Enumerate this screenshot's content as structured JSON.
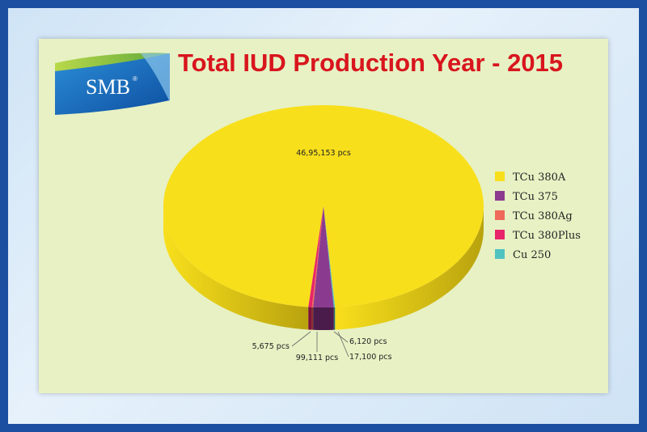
{
  "logo": {
    "text": "SMB",
    "mark": "®"
  },
  "title": "Total IUD Production Year - 2015",
  "colors": {
    "frame": "#1c4fa0",
    "panel": "#e7f1c4",
    "title": "#d8151d"
  },
  "chart_data": {
    "type": "pie",
    "style": "3d",
    "legend_position": "right",
    "series": [
      {
        "name": "TCu 380A",
        "value": 4695153,
        "label": "46,95,153 pcs",
        "color": "#f8df1c",
        "side": "#b9a30e"
      },
      {
        "name": "TCu 375",
        "value": 99111,
        "label": "99,111 pcs",
        "color": "#8b3b8f",
        "side": "#4a1c4c"
      },
      {
        "name": "TCu 380Ag",
        "value": 6120,
        "label": "6,120 pcs",
        "color": "#ef6a5a",
        "side": "#8a3026"
      },
      {
        "name": "TCu 380Plus",
        "value": 17100,
        "label": "17,100 pcs",
        "color": "#e8256a",
        "side": "#7d1238"
      },
      {
        "name": "Cu 250",
        "value": 5675,
        "label": "5,675 pcs",
        "color": "#4fc3c0",
        "side": "#23706e"
      }
    ]
  }
}
